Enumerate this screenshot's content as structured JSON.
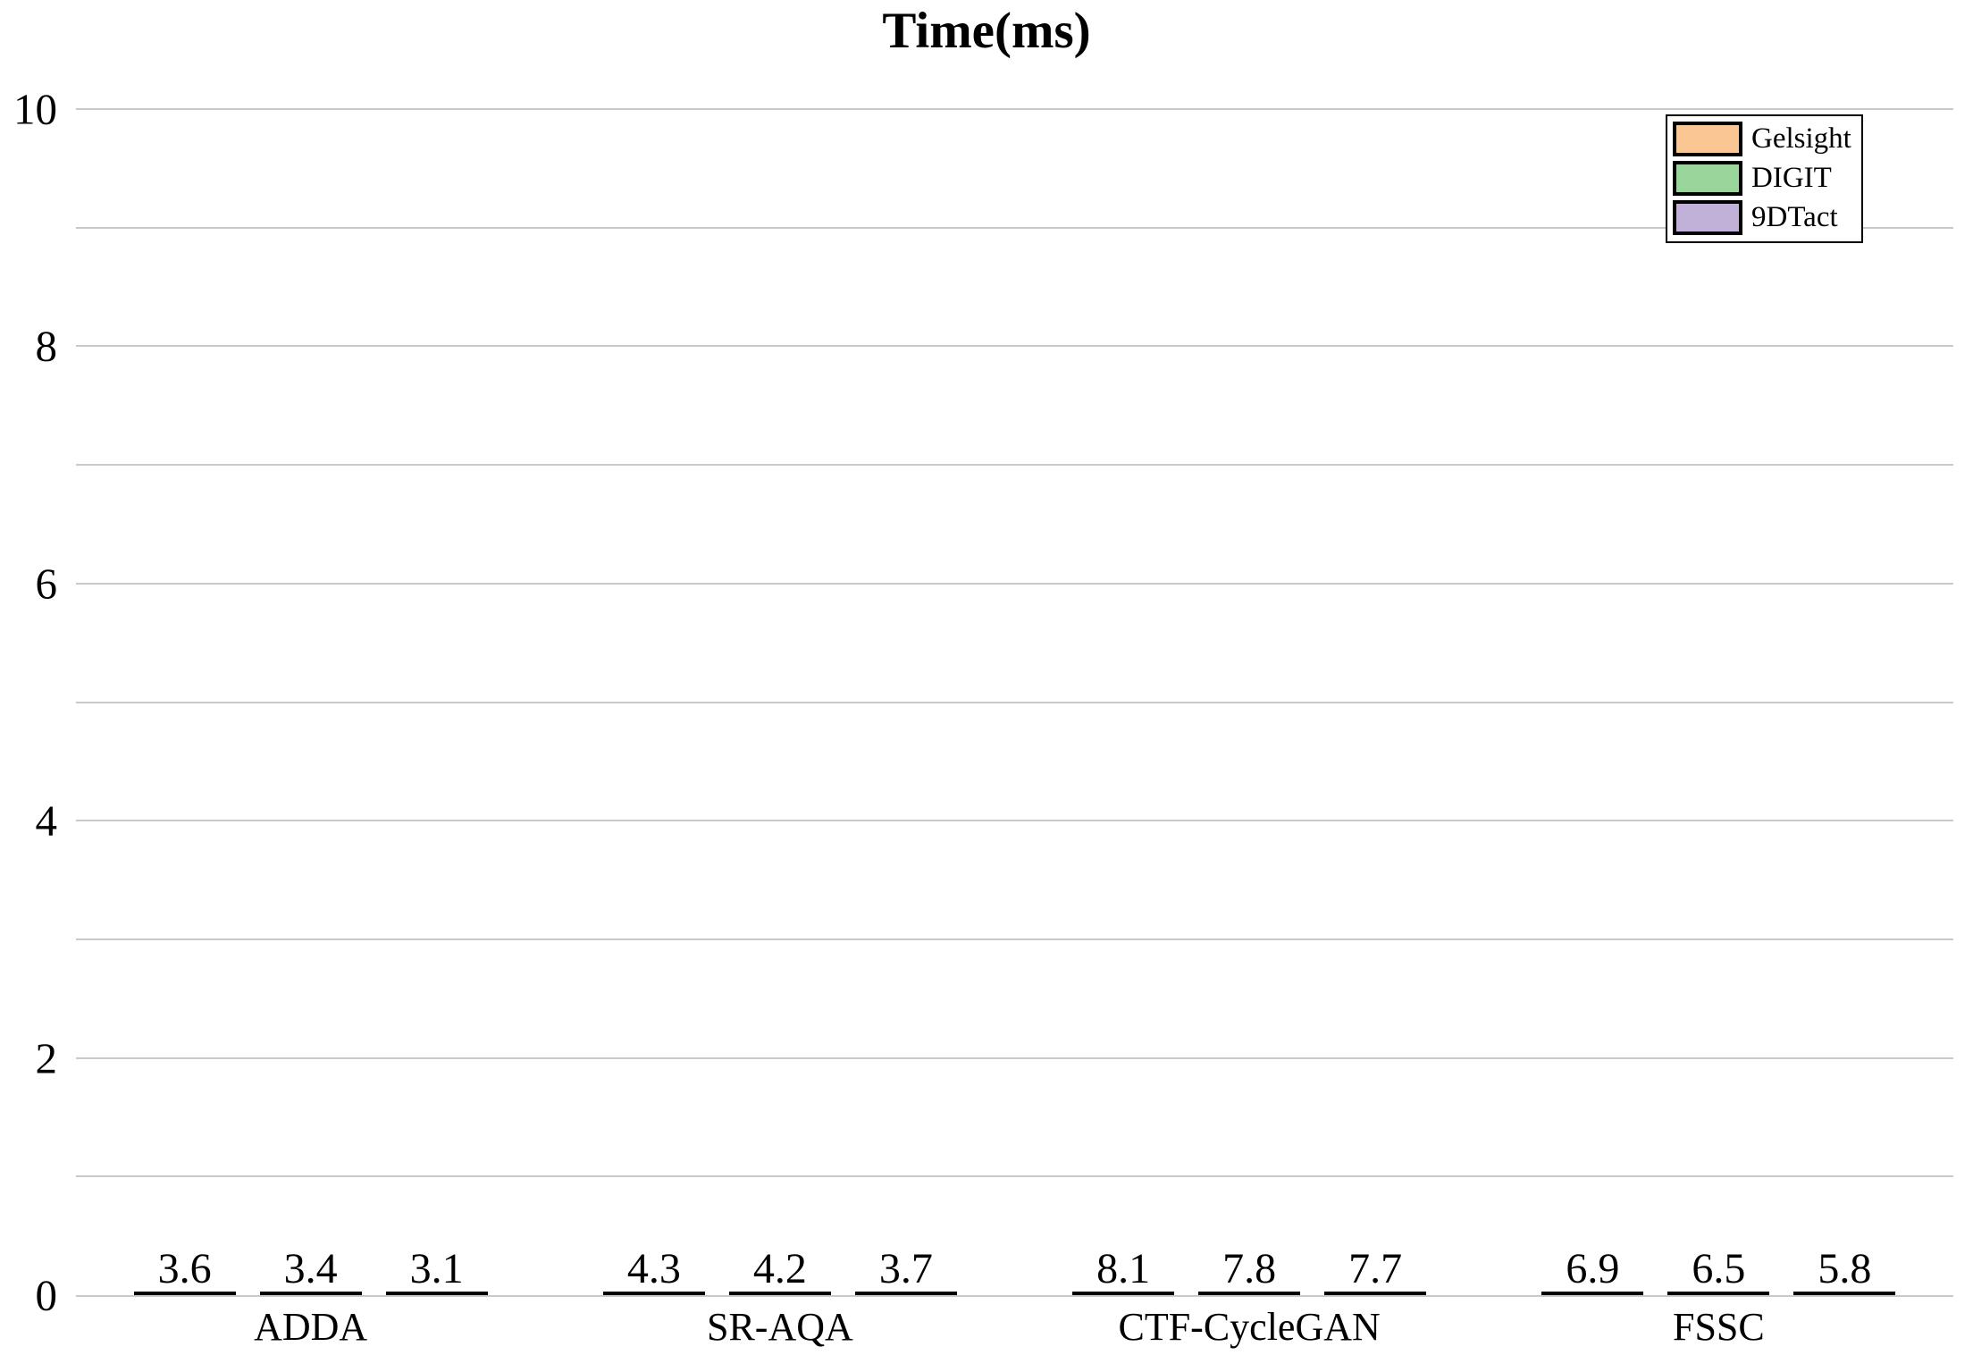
{
  "chart_data": {
    "type": "bar",
    "title": "Time(ms)",
    "categories": [
      "ADDA",
      "SR-AQA",
      "CTF-CycleGAN",
      "FSSC"
    ],
    "series": [
      {
        "name": "Gelsight",
        "color": "#FAC794",
        "values": [
          3.6,
          4.3,
          8.1,
          6.9
        ]
      },
      {
        "name": "DIGIT",
        "color": "#9AD69B",
        "values": [
          3.4,
          4.2,
          7.8,
          6.5
        ]
      },
      {
        "name": "9DTact",
        "color": "#C1B1D8",
        "values": [
          3.1,
          3.7,
          7.7,
          5.8
        ]
      }
    ],
    "ylim": [
      0,
      10
    ],
    "yticks": [
      0,
      2,
      4,
      6,
      8,
      10
    ],
    "gridline_step": 1,
    "grid": true,
    "value_labels": true,
    "legend_position": "top-right",
    "colors": {
      "bar_edge": "#000000",
      "gridline": "#c9c9c9",
      "text": "#000000",
      "background": "#ffffff"
    }
  }
}
